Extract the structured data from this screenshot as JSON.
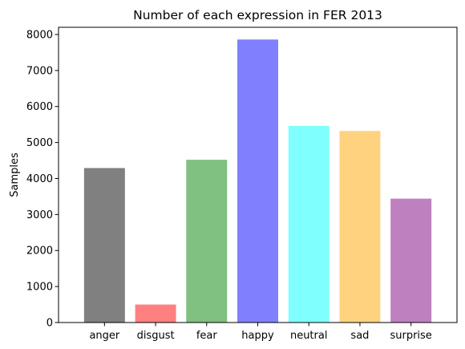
{
  "chart_data": {
    "type": "bar",
    "title": "Number of each expression in FER 2013",
    "xlabel": "",
    "ylabel": "Samples",
    "categories": [
      "anger",
      "disgust",
      "fear",
      "happy",
      "neutral",
      "sad",
      "surprise"
    ],
    "values": [
      4290,
      500,
      4520,
      7860,
      5460,
      5320,
      3440
    ],
    "colors": [
      "#808080",
      "#ff8080",
      "#80c080",
      "#8080ff",
      "#80ffff",
      "#ffd280",
      "#bf80bf"
    ],
    "ylim": [
      0,
      8200
    ],
    "yticks": [
      0,
      1000,
      2000,
      3000,
      4000,
      5000,
      6000,
      7000,
      8000
    ],
    "grid": false,
    "legend": "none"
  }
}
